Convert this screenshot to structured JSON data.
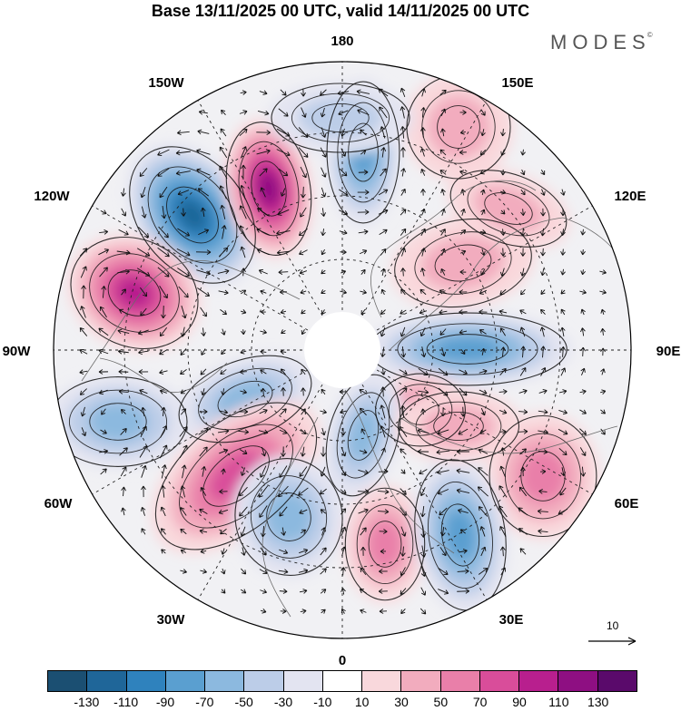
{
  "title": "Base 13/11/2025 00 UTC, valid 14/11/2025 00 UTC",
  "brand": "MODES",
  "brand_mark": "©",
  "longitude_labels": {
    "lon_180": "180",
    "lon_150e": "150E",
    "lon_120e": "120E",
    "lon_90e": "90E",
    "lon_60e": "60E",
    "lon_30e": "30E",
    "lon_0": "0",
    "lon_30w": "30W",
    "lon_60w": "60W",
    "lon_90w": "90W",
    "lon_120w": "120W",
    "lon_150w": "150W"
  },
  "reference_vector": {
    "value": "10"
  },
  "colorbar": {
    "colors": [
      "#1b4f72",
      "#1f6699",
      "#2f82bd",
      "#5a9fd0",
      "#8cb9df",
      "#bccde8",
      "#e3e4f1",
      "#ffffff",
      "#f9d8dc",
      "#f2acbe",
      "#e97fa9",
      "#d94d9a",
      "#b81f8e",
      "#8e0f82",
      "#5a0a6b"
    ],
    "tick_labels": [
      "-130",
      "-110",
      "-90",
      "-70",
      "-50",
      "-30",
      "-10",
      "10",
      "30",
      "50",
      "70",
      "90",
      "110",
      "130"
    ]
  }
}
